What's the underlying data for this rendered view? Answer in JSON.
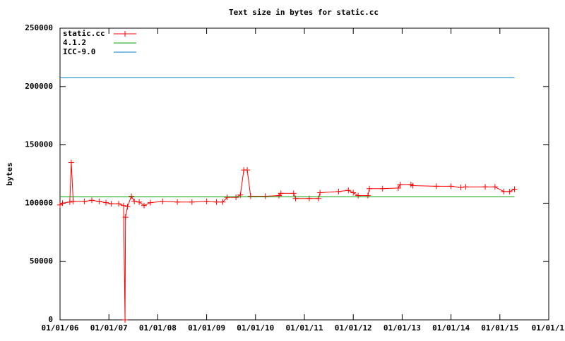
{
  "chart_data": {
    "type": "line",
    "title": "Text size in bytes for static.cc",
    "y_label": "bytes",
    "xlim": [
      2006,
      2016
    ],
    "ylim": [
      0,
      250000
    ],
    "xticks": [
      {
        "value": 2006,
        "label": "01/01/06"
      },
      {
        "value": 2007,
        "label": "01/01/07"
      },
      {
        "value": 2008,
        "label": "01/01/08"
      },
      {
        "value": 2009,
        "label": "01/01/09"
      },
      {
        "value": 2010,
        "label": "01/01/10"
      },
      {
        "value": 2011,
        "label": "01/01/11"
      },
      {
        "value": 2012,
        "label": "01/01/12"
      },
      {
        "value": 2013,
        "label": "01/01/13"
      },
      {
        "value": 2014,
        "label": "01/01/14"
      },
      {
        "value": 2015,
        "label": "01/01/15"
      },
      {
        "value": 2016,
        "label": "01/01/1"
      }
    ],
    "yticks": [
      0,
      50000,
      100000,
      150000,
      200000,
      250000
    ],
    "legend": "top-left",
    "grid": false,
    "series": [
      {
        "name": "static.cc",
        "color": "#ff0000",
        "markers": true,
        "x": [
          2006.0,
          2006.05,
          2006.2,
          2006.23,
          2006.27,
          2006.5,
          2006.65,
          2006.8,
          2006.94,
          2007.05,
          2007.2,
          2007.3,
          2007.33,
          2007.34,
          2007.38,
          2007.46,
          2007.52,
          2007.62,
          2007.72,
          2007.85,
          2008.1,
          2008.4,
          2008.7,
          2009.0,
          2009.2,
          2009.33,
          2009.42,
          2009.6,
          2009.69,
          2009.76,
          2009.83,
          2009.9,
          2010.2,
          2010.48,
          2010.52,
          2010.78,
          2010.82,
          2011.1,
          2011.29,
          2011.32,
          2011.7,
          2011.9,
          2012.0,
          2012.1,
          2012.3,
          2012.33,
          2012.6,
          2012.92,
          2012.96,
          2013.18,
          2013.22,
          2013.7,
          2014.0,
          2014.2,
          2014.3,
          2014.7,
          2014.9,
          2015.08,
          2015.2,
          2015.3
        ],
        "values": [
          98500,
          100000,
          101000,
          135000,
          101500,
          101500,
          102500,
          101500,
          100500,
          99500,
          99500,
          98000,
          0,
          88000,
          97000,
          106000,
          101500,
          101000,
          98000,
          100500,
          101500,
          101000,
          101000,
          101500,
          101000,
          101000,
          105000,
          105000,
          107000,
          128500,
          128500,
          106000,
          106000,
          106500,
          108500,
          108500,
          104000,
          104000,
          104000,
          109000,
          110000,
          111000,
          109000,
          106500,
          106500,
          112500,
          112500,
          113000,
          116000,
          116000,
          115000,
          114500,
          114500,
          113500,
          114000,
          114000,
          114000,
          110000,
          110000,
          112000
        ]
      },
      {
        "name": "4.1.2",
        "color": "#00a000",
        "x": [
          2006.0,
          2015.3
        ],
        "values": [
          105500,
          105500
        ]
      },
      {
        "name": "ICC-9.0",
        "color": "#0080c0",
        "x": [
          2006.0,
          2015.3
        ],
        "values": [
          207500,
          207500
        ]
      }
    ]
  }
}
